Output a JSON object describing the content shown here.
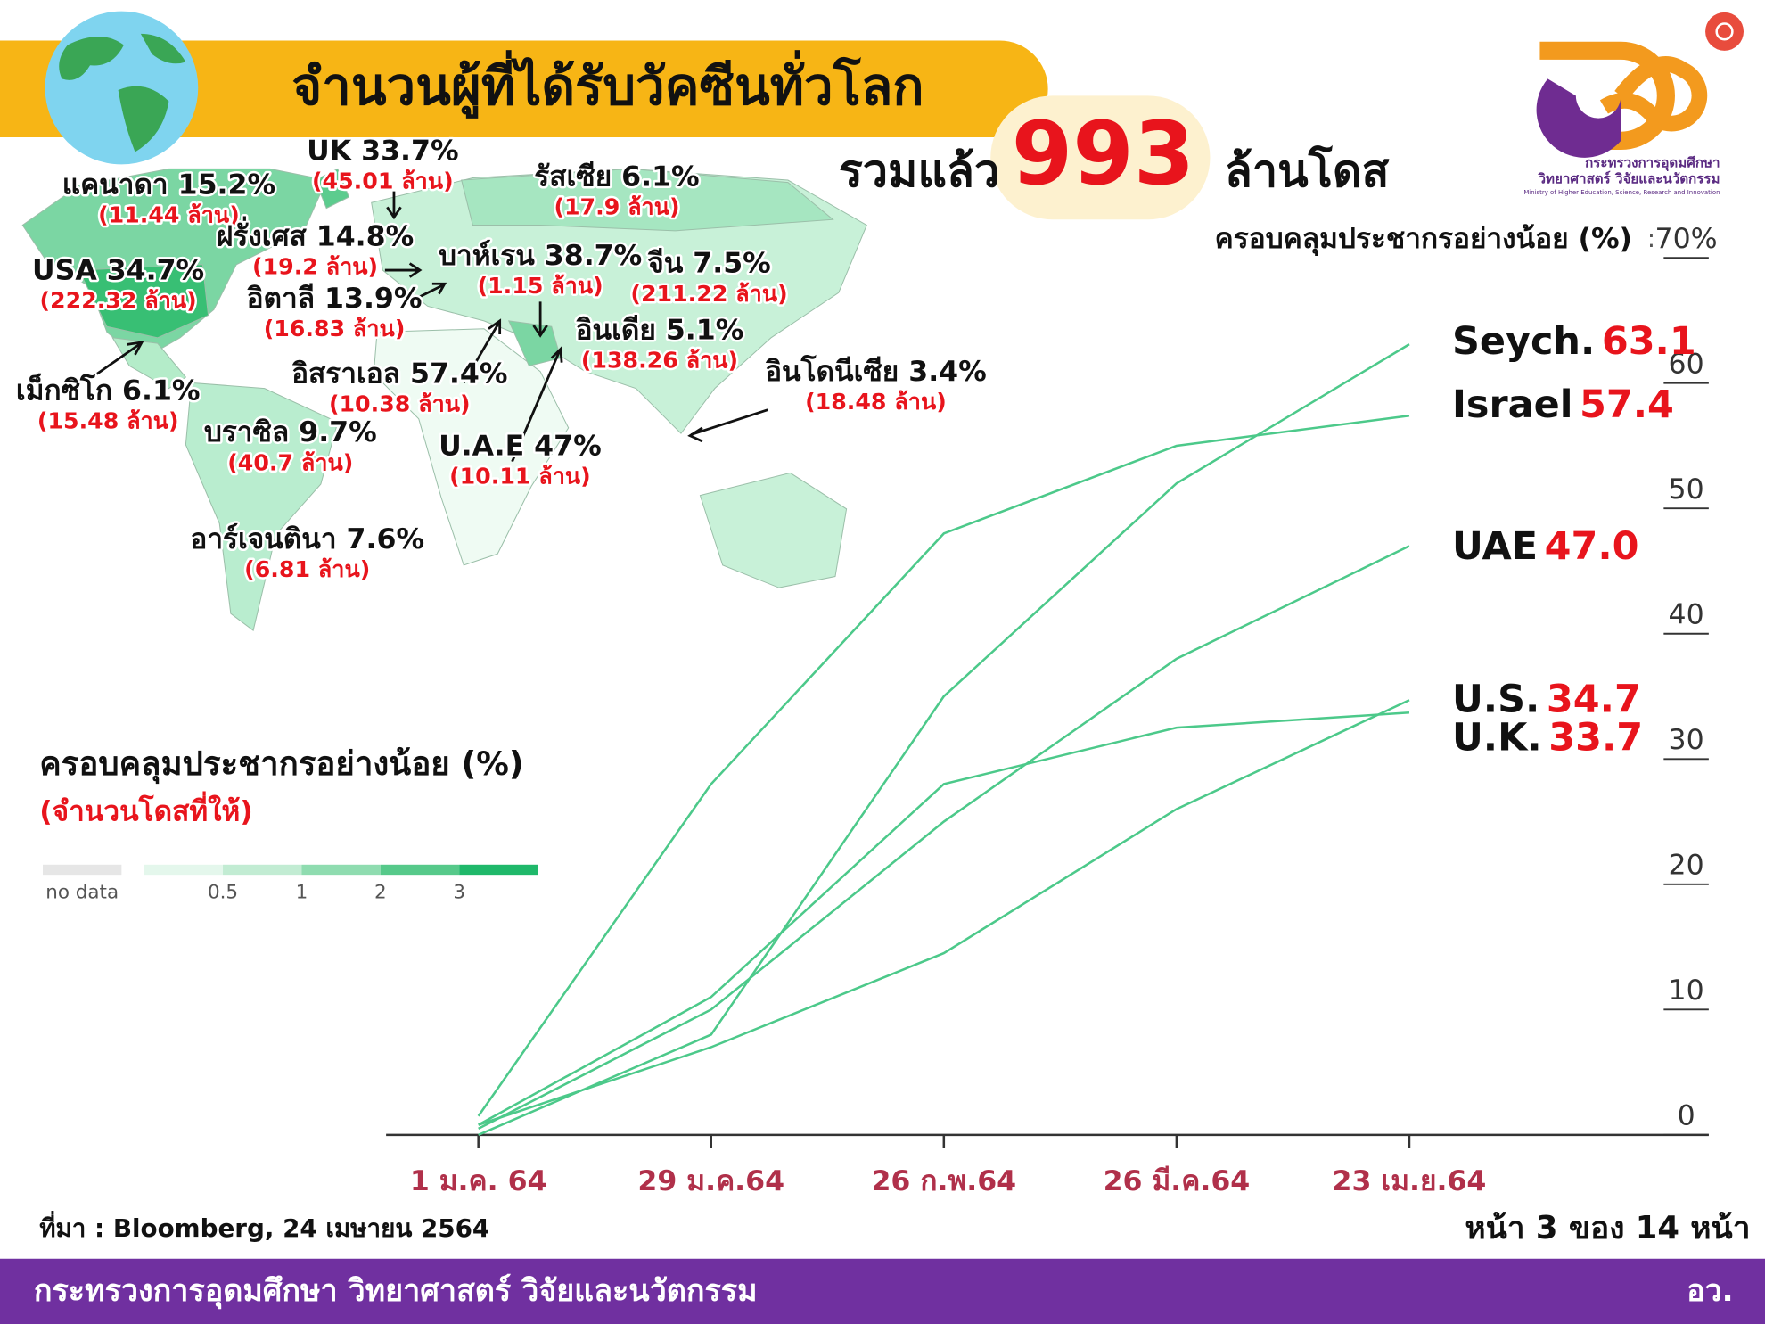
{
  "header": {
    "title": "จำนวนผู้ที่ได้รับวัคซีนทั่วโลก",
    "total_prefix": "รวมแล้ว",
    "total": 993,
    "total_unit": "ล้านโดส"
  },
  "logo": {
    "line1": "กระทรวงการอุดมศึกษา",
    "line2": "วิทยาศาสตร์ วิจัยและนวัตกรรม",
    "line3": "Ministry of Higher Education, Science, Research and Innovation"
  },
  "map_labels": [
    {
      "label": "แคนาดา 15.2%",
      "doses": "(11.44 ล้าน)"
    },
    {
      "label": "UK 33.7%",
      "doses": "(45.01 ล้าน)"
    },
    {
      "label": "รัสเซีย 6.1%",
      "doses": "(17.9 ล้าน)"
    },
    {
      "label": "ฝรั่งเศส 14.8%",
      "doses": "(19.2 ล้าน)"
    },
    {
      "label": "USA 34.7%",
      "doses": "(222.32 ล้าน)"
    },
    {
      "label": "บาห์เรน 38.7%",
      "doses": "(1.15 ล้าน)"
    },
    {
      "label": "จีน 7.5%",
      "doses": "(211.22 ล้าน)"
    },
    {
      "label": "อิตาลี 13.9%",
      "doses": "(16.83 ล้าน)"
    },
    {
      "label": "อินเดีย 5.1%",
      "doses": "(138.26 ล้าน)"
    },
    {
      "label": "อินโดนีเซีย 3.4%",
      "doses": "(18.48 ล้าน)"
    },
    {
      "label": "เม็กซิโก 6.1%",
      "doses": "(15.48 ล้าน)"
    },
    {
      "label": "อิสราเอล 57.4%",
      "doses": "(10.38 ล้าน)"
    },
    {
      "label": "บราซิล 9.7%",
      "doses": "(40.7 ล้าน)"
    },
    {
      "label": "U.A.E 47%",
      "doses": "(10.11 ล้าน)"
    },
    {
      "label": "อาร์เจนตินา 7.6%",
      "doses": "(6.81 ล้าน)"
    }
  ],
  "legend": {
    "title": "ครอบคลุมประชากรอย่างน้อย (%)",
    "subtitle": "(จำนวนโดสที่ให้)",
    "no_data": "no data",
    "scale": [
      0.5,
      1,
      2,
      3
    ]
  },
  "chart_data": {
    "type": "line",
    "ylabel": "ครอบคลุมประชากรอย่างน้อย (%)",
    "categories": [
      "1 ม.ค. 64",
      "29 ม.ค.64",
      "26 ก.พ.64",
      "26 มี.ค.64",
      "23 เม.ย.64"
    ],
    "ylim": [
      0,
      70
    ],
    "yticks": [
      0,
      10,
      20,
      30,
      40,
      50,
      60,
      {
        "value": 70,
        "label": "70%"
      }
    ],
    "color": "#4cc98a",
    "series": [
      {
        "name": "Seych.",
        "values": [
          0,
          8,
          35,
          52,
          63.1
        ],
        "value_labels": [
          null,
          null,
          null,
          null,
          "63.1"
        ]
      },
      {
        "name": "Israel",
        "values": [
          1.5,
          28,
          48,
          55,
          57.4
        ],
        "value_labels": [
          null,
          null,
          null,
          null,
          "57.4"
        ]
      },
      {
        "name": "UAE",
        "values": [
          0.5,
          10,
          25,
          38,
          47
        ],
        "value_labels": [
          null,
          null,
          null,
          null,
          "47.0"
        ]
      },
      {
        "name": "U.S.",
        "values": [
          0.8,
          7,
          14.5,
          26,
          34.7
        ],
        "value_labels": [
          null,
          null,
          null,
          null,
          "34.7"
        ]
      },
      {
        "name": "U.K.",
        "values": [
          0.8,
          11,
          28,
          32.5,
          33.7
        ],
        "value_labels": [
          null,
          null,
          null,
          null,
          "33.7"
        ]
      }
    ]
  },
  "source": "ที่มา : Bloomberg, 24 เมษายน 2564",
  "page": "หน้า 3 ของ 14 หน้า",
  "footer": {
    "ministry": "กระทรวงการอุดมศึกษา วิทยาศาสตร์ วิจัยและนวัตกรรม",
    "abbr": "อว."
  }
}
